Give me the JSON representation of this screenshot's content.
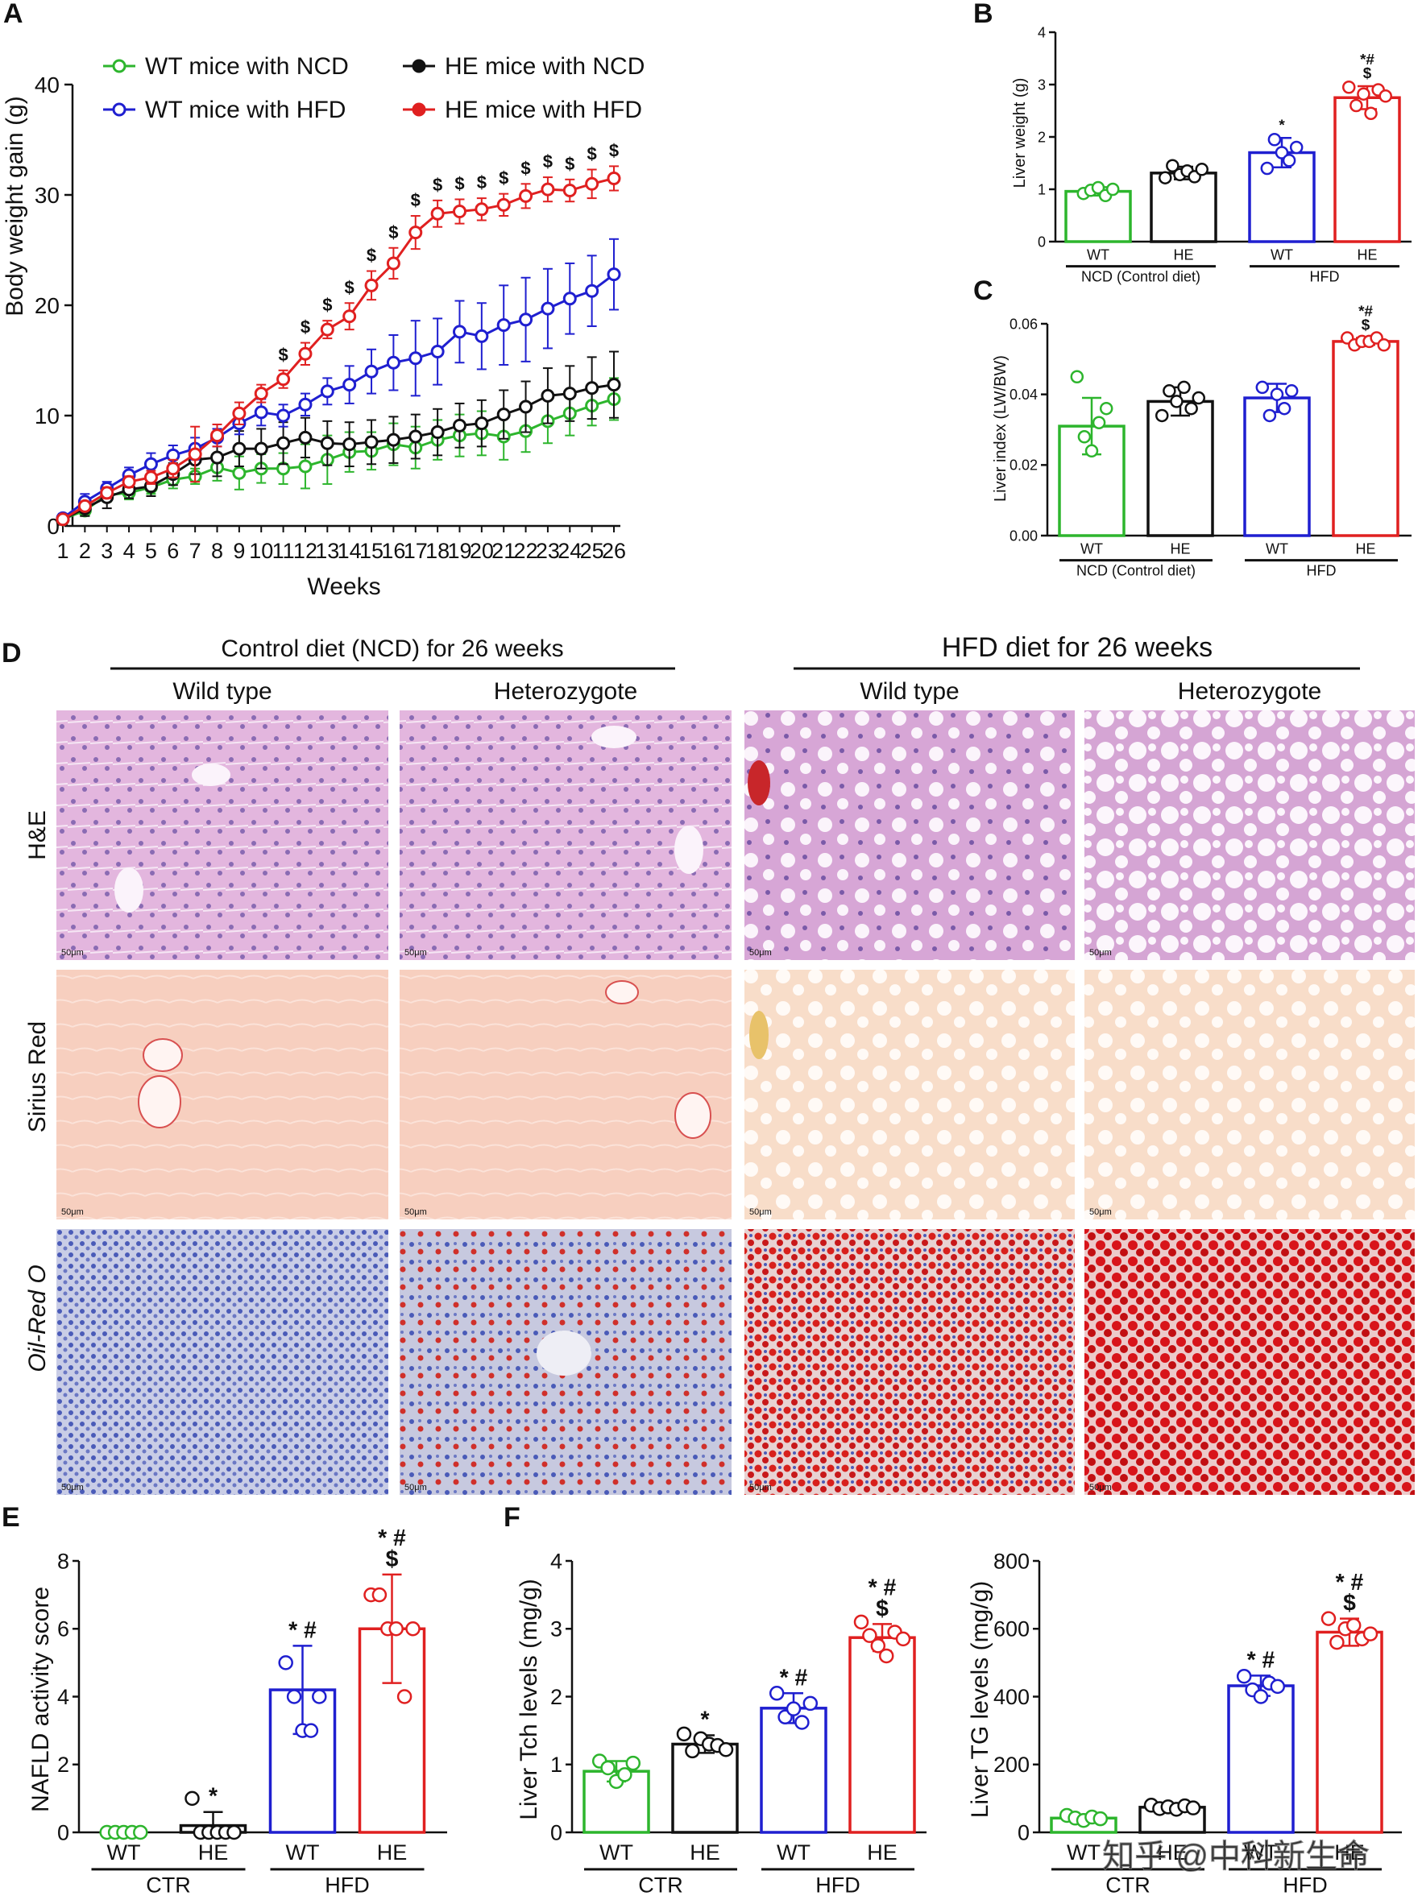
{
  "colors": {
    "wt_ncd": "#2db52d",
    "he_ncd": "#111111",
    "wt_hfd": "#1f1fd0",
    "he_hfd": "#e02020"
  },
  "panels": {
    "A": {
      "letter": "A",
      "chart_data": {
        "type": "line",
        "title": "",
        "xlabel": "Weeks",
        "ylabel": "Body weight gain (g)",
        "ylim": [
          0,
          40
        ],
        "yticks": [
          "0",
          "10",
          "20",
          "30",
          "40"
        ],
        "x": [
          1,
          2,
          3,
          4,
          5,
          6,
          7,
          8,
          9,
          10,
          11,
          12,
          13,
          14,
          15,
          16,
          17,
          18,
          19,
          20,
          21,
          22,
          23,
          24,
          25,
          26
        ],
        "series": [
          {
            "name": "WT mice with NCD",
            "color": "#2db52d",
            "values": [
              0.6,
              1.4,
              2.8,
              3.0,
              3.5,
              4.2,
              4.5,
              5.3,
              4.8,
              5.2,
              5.2,
              5.4,
              6.0,
              6.7,
              6.8,
              7.4,
              7.1,
              7.8,
              8.2,
              8.4,
              8.1,
              8.6,
              9.5,
              10.2,
              10.9,
              11.5
            ],
            "err": [
              0.4,
              0.5,
              0.6,
              0.6,
              0.6,
              0.8,
              0.7,
              1.2,
              1.5,
              1.3,
              1.4,
              2.0,
              2.2,
              1.8,
              1.7,
              1.9,
              1.9,
              1.8,
              1.9,
              2.0,
              2.1,
              1.9,
              2.0,
              2.0,
              1.8,
              1.9
            ]
          },
          {
            "name": "HE mice with NCD",
            "color": "#111111",
            "values": [
              0.6,
              1.6,
              2.6,
              3.3,
              3.6,
              4.7,
              6.0,
              6.2,
              7.0,
              7.0,
              7.5,
              8.0,
              7.5,
              7.4,
              7.6,
              7.8,
              8.1,
              8.5,
              9.1,
              9.3,
              10.1,
              10.8,
              11.8,
              12.0,
              12.5,
              12.8
            ],
            "err": [
              0.5,
              0.7,
              1.0,
              0.8,
              0.9,
              1.0,
              1.3,
              1.7,
              1.6,
              1.8,
              1.9,
              1.8,
              2.0,
              2.0,
              2.0,
              2.1,
              2.0,
              2.1,
              2.0,
              2.1,
              2.2,
              2.3,
              2.5,
              2.5,
              2.8,
              3.0
            ]
          },
          {
            "name": "WT mice with HFD",
            "color": "#1f1fd0",
            "values": [
              0.7,
              2.2,
              3.4,
              4.6,
              5.6,
              6.4,
              7.0,
              8.0,
              9.3,
              10.3,
              10.0,
              11.0,
              12.2,
              12.8,
              14.0,
              14.8,
              15.2,
              15.8,
              17.6,
              17.2,
              18.2,
              18.7,
              19.7,
              20.6,
              21.3,
              22.8
            ],
            "err": [
              0.3,
              0.7,
              0.6,
              0.7,
              1.0,
              0.9,
              1.0,
              0.8,
              1.0,
              1.2,
              1.0,
              1.0,
              1.2,
              1.7,
              2.0,
              2.5,
              3.4,
              3.0,
              2.8,
              3.0,
              3.6,
              3.8,
              3.6,
              3.2,
              3.2,
              3.2
            ]
          },
          {
            "name": "HE mice with HFD",
            "color": "#e02020",
            "values": [
              0.6,
              1.8,
              3.0,
              4.0,
              4.4,
              5.2,
              6.5,
              8.2,
              10.2,
              12.0,
              13.3,
              15.6,
              17.8,
              19.0,
              21.8,
              23.8,
              26.6,
              28.3,
              28.5,
              28.7,
              29.1,
              29.9,
              30.5,
              30.4,
              31.0,
              31.5
            ],
            "err": [
              0.3,
              0.4,
              0.5,
              0.5,
              0.6,
              0.8,
              2.5,
              1.0,
              1.0,
              0.8,
              0.8,
              1.0,
              0.8,
              1.2,
              1.3,
              1.4,
              1.5,
              1.2,
              1.1,
              1.0,
              1.0,
              1.1,
              1.1,
              1.0,
              1.3,
              1.1
            ]
          }
        ],
        "sig_marks": {
          "symbol": "$",
          "weeks": [
            11,
            12,
            13,
            14,
            15,
            16,
            17,
            18,
            19,
            20,
            21,
            22,
            23,
            24,
            25,
            26
          ]
        },
        "legend": [
          "WT mice with NCD",
          "HE mice with NCD",
          "WT mice with HFD",
          "HE mice with HFD"
        ]
      }
    },
    "B": {
      "letter": "B",
      "chart_data": {
        "type": "bar",
        "ylabel": "Liver weight (g)",
        "ylim": [
          0,
          4
        ],
        "yticks": [
          "0",
          "1",
          "2",
          "3",
          "4"
        ],
        "categories": [
          "WT",
          "HE",
          "WT",
          "HE"
        ],
        "values": [
          0.96,
          1.31,
          1.7,
          2.75
        ],
        "err": [
          0.08,
          0.12,
          0.28,
          0.22
        ],
        "points": [
          [
            0.92,
            0.98,
            1.03,
            0.88,
            1.0
          ],
          [
            1.22,
            1.45,
            1.28,
            1.35,
            1.24,
            1.38
          ],
          [
            1.4,
            1.95,
            1.7,
            1.55,
            1.8
          ],
          [
            2.95,
            2.6,
            2.82,
            2.45,
            2.9,
            2.78
          ]
        ],
        "annotations": [
          "",
          "",
          "*",
          "*#\n$"
        ],
        "groups": [
          "NCD (Control diet)",
          "HFD"
        ]
      }
    },
    "C": {
      "letter": "C",
      "chart_data": {
        "type": "bar",
        "ylabel": "Liver index (LW/BW)",
        "ylim": [
          0,
          0.06
        ],
        "yticks": [
          "0.00",
          "0.02",
          "0.04",
          "0.06"
        ],
        "categories": [
          "WT",
          "HE",
          "WT",
          "HE"
        ],
        "values": [
          0.031,
          0.038,
          0.039,
          0.055
        ],
        "err": [
          0.008,
          0.004,
          0.004,
          0.001
        ],
        "points": [
          [
            0.045,
            0.028,
            0.024,
            0.032,
            0.036
          ],
          [
            0.034,
            0.041,
            0.038,
            0.042,
            0.036,
            0.039
          ],
          [
            0.042,
            0.034,
            0.04,
            0.036,
            0.041
          ],
          [
            0.056,
            0.054,
            0.055,
            0.055,
            0.056,
            0.054
          ]
        ],
        "annotations": [
          "",
          "",
          "",
          "*#\n$"
        ],
        "groups": [
          "NCD (Control diet)",
          "HFD"
        ]
      }
    },
    "D": {
      "letter": "D",
      "group_titles": [
        "Control diet (NCD) for 26 weeks",
        "HFD diet for 26 weeks"
      ],
      "column_titles": [
        "Wild type",
        "Heterozygote",
        "Wild type",
        "Heterozygote"
      ],
      "row_labels": [
        "H&E",
        "Sirius Red",
        "Oil-Red O"
      ],
      "scale_label": "50μm"
    },
    "E": {
      "letter": "E",
      "chart_data": {
        "type": "bar",
        "ylabel": "NAFLD activity score",
        "ylim": [
          0,
          8
        ],
        "yticks": [
          "0",
          "2",
          "4",
          "6",
          "8"
        ],
        "categories": [
          "WT",
          "HE",
          "WT",
          "HE"
        ],
        "values": [
          0.0,
          0.2,
          4.2,
          6.0
        ],
        "err": [
          0.0,
          0.4,
          1.3,
          1.6
        ],
        "points": [
          [
            0,
            0,
            0,
            0,
            0
          ],
          [
            1.0,
            0,
            0,
            0,
            0,
            0
          ],
          [
            5.0,
            4.0,
            3.0,
            3.0,
            4.0
          ],
          [
            7.0,
            7.0,
            6.0,
            6.0,
            4.0,
            6.0
          ]
        ],
        "annotations": [
          "",
          "*",
          "* #",
          "* #\n$"
        ],
        "groups": [
          "CTR",
          "HFD"
        ]
      }
    },
    "F": {
      "letter": "F",
      "charts": [
        {
          "type": "bar",
          "ylabel": "Liver Tch levels (mg/g)",
          "ylim": [
            0,
            4
          ],
          "yticks": [
            "0",
            "1",
            "2",
            "3",
            "4"
          ],
          "categories": [
            "WT",
            "HE",
            "WT",
            "HE"
          ],
          "values": [
            0.9,
            1.3,
            1.83,
            2.87
          ],
          "err": [
            0.15,
            0.13,
            0.22,
            0.2
          ],
          "points": [
            [
              1.05,
              0.95,
              0.75,
              0.85,
              1.02
            ],
            [
              1.45,
              1.2,
              1.38,
              1.3,
              1.28,
              1.22
            ],
            [
              2.05,
              1.7,
              1.82,
              1.62,
              1.9
            ],
            [
              3.1,
              2.9,
              2.75,
              2.6,
              2.95,
              2.85
            ]
          ],
          "annotations": [
            "",
            "*",
            "* #",
            "* #\n$"
          ],
          "groups": [
            "CTR",
            "HFD"
          ]
        },
        {
          "type": "bar",
          "ylabel": "Liver TG levels (mg/g)",
          "ylim": [
            0,
            800
          ],
          "yticks": [
            "0",
            "200",
            "400",
            "600",
            "800"
          ],
          "categories": [
            "WT",
            "HE",
            "WT",
            "HE"
          ],
          "values": [
            42,
            74,
            432,
            590
          ],
          "err": [
            10,
            10,
            30,
            40
          ],
          "points": [
            [
              50,
              42,
              35,
              45,
              40
            ],
            [
              80,
              70,
              75,
              68,
              78,
              72
            ],
            [
              460,
              420,
              400,
              440,
              430
            ],
            [
              630,
              560,
              600,
              610,
              570,
              585
            ]
          ],
          "annotations": [
            "",
            "",
            "* #",
            "* #\n$"
          ],
          "groups": [
            "CTR",
            "HFD"
          ]
        }
      ]
    }
  },
  "watermark": "知乎 @中科新生命"
}
